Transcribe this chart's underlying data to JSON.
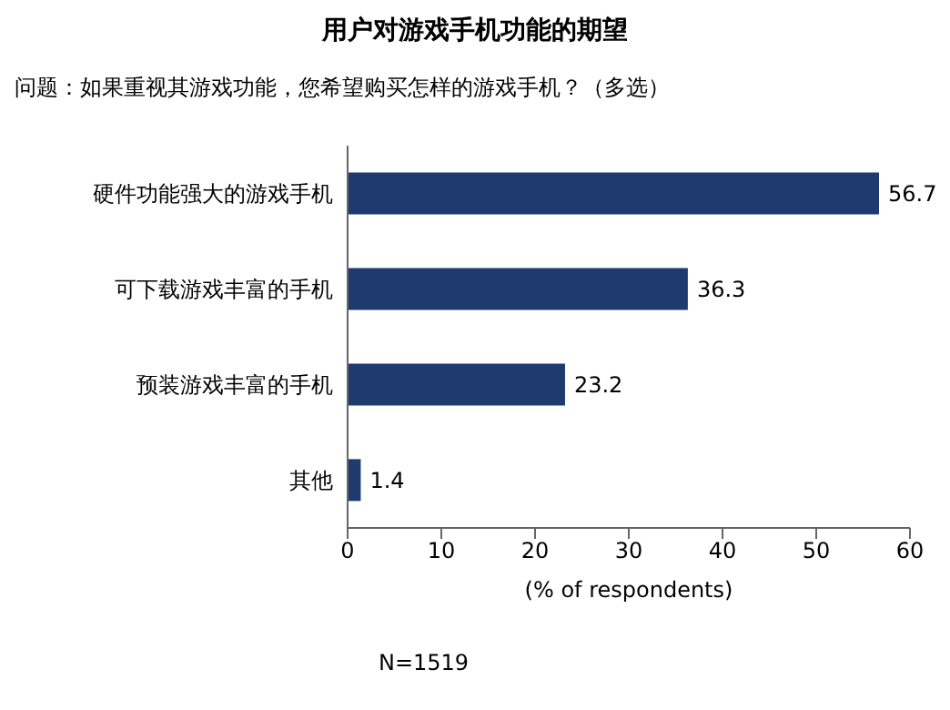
{
  "chart_data": {
    "type": "bar",
    "orientation": "horizontal",
    "title": "用户对游戏手机功能的期望",
    "subtitle": "问题：如果重视其游戏功能，您希望购买怎样的游戏手机？（多选）",
    "categories": [
      "硬件功能强大的游戏手机",
      "可下载游戏丰富的手机",
      "预装游戏丰富的手机",
      "其他"
    ],
    "values": [
      56.7,
      36.3,
      23.2,
      1.4
    ],
    "color": "#1f3a6e",
    "data_labels": true,
    "xlabel": "(% of respondents)",
    "xlim": [
      0,
      60
    ],
    "xticks": [
      0,
      10,
      20,
      30,
      40,
      50,
      60
    ],
    "grid": false,
    "annotations": [
      "N=1519"
    ]
  }
}
